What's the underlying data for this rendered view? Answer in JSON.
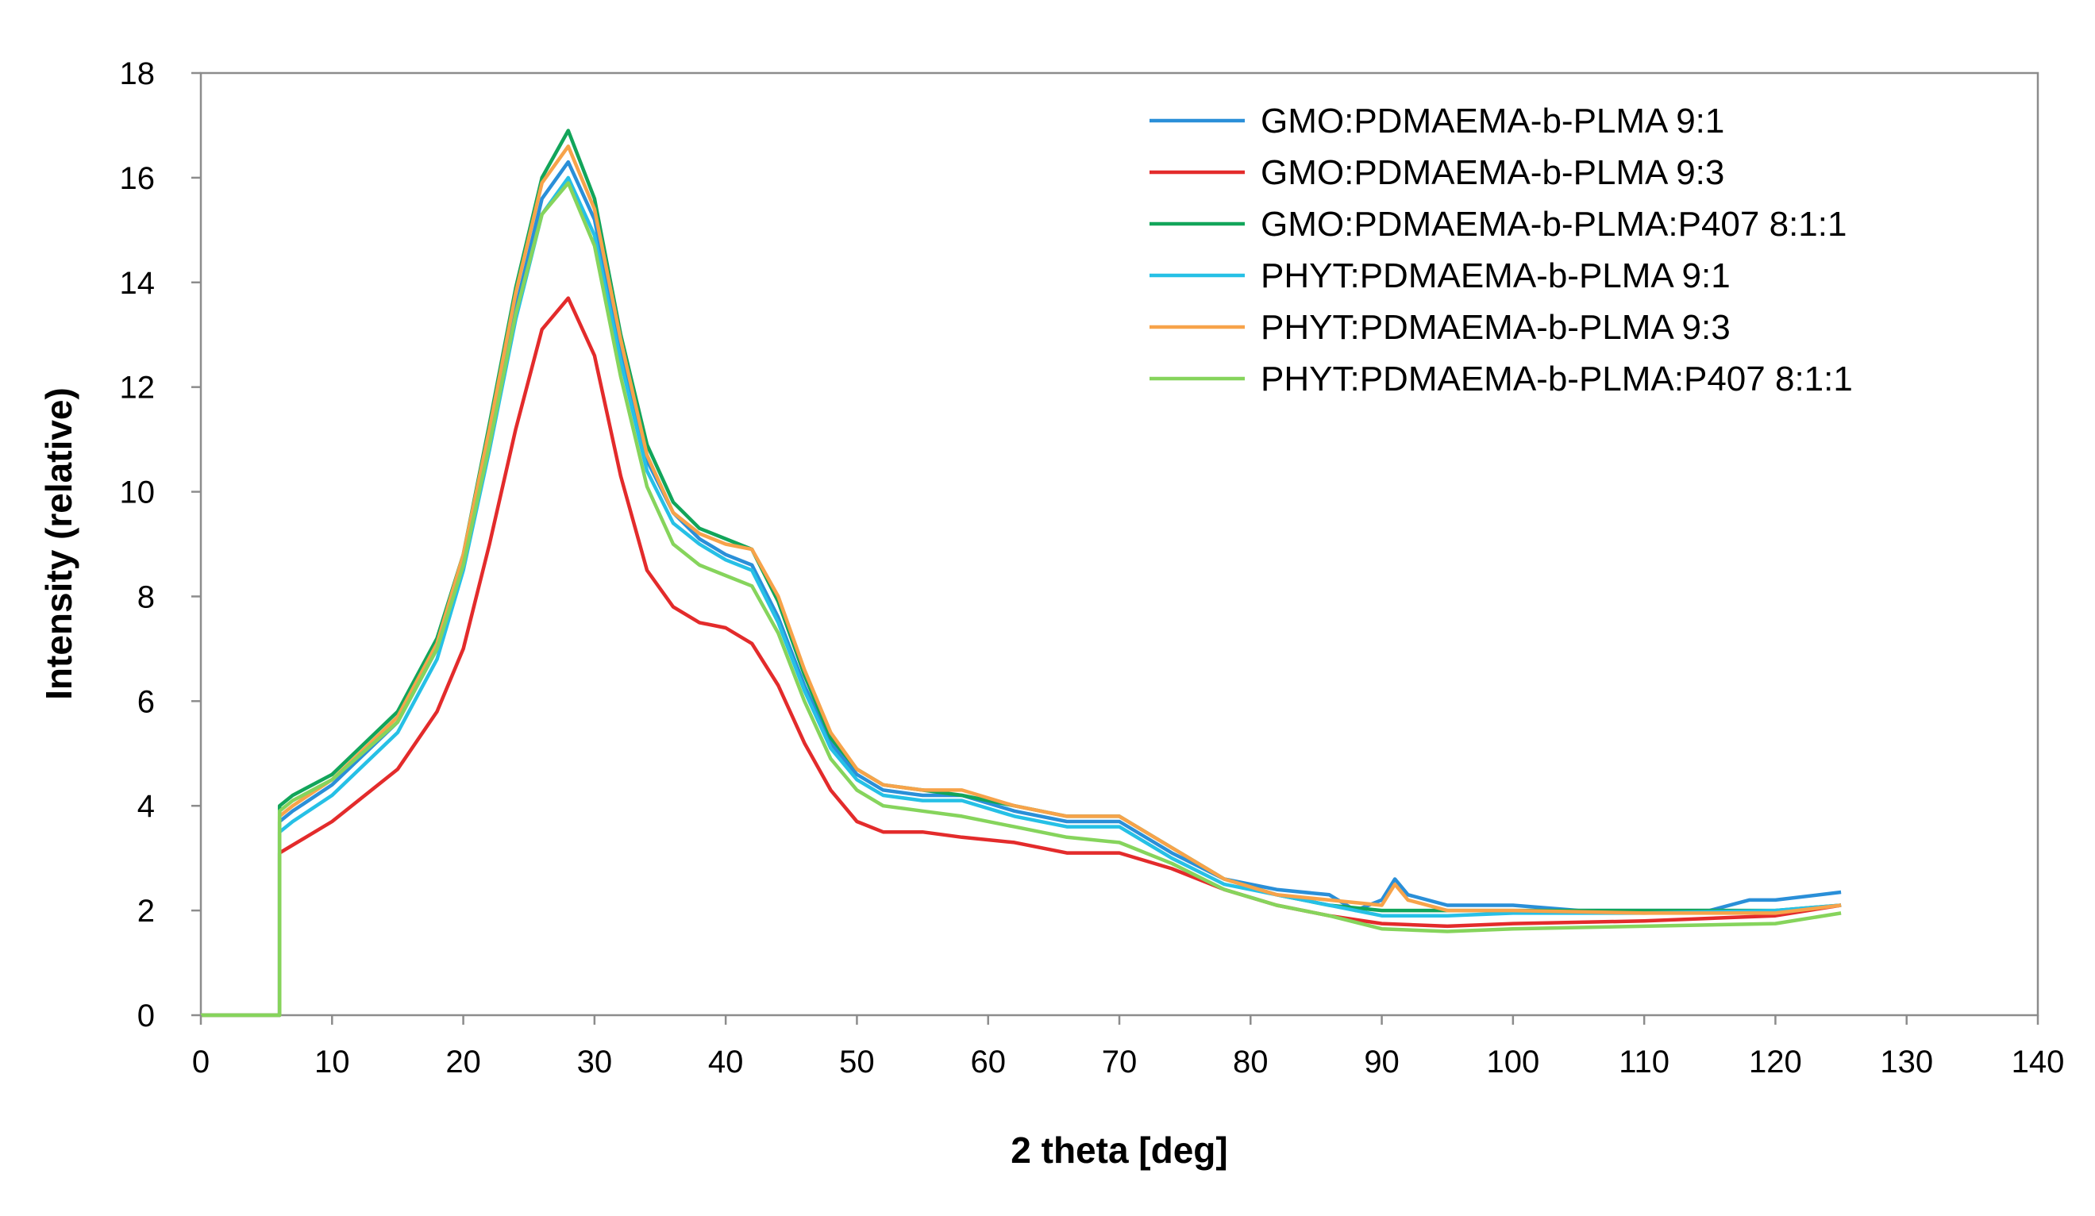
{
  "chart_data": {
    "type": "line",
    "title": "",
    "xlabel": "2 theta [deg]",
    "ylabel": "Intensity (relative)",
    "xlim": [
      0,
      140
    ],
    "ylim": [
      0,
      18
    ],
    "xticks": [
      "0",
      "10",
      "20",
      "30",
      "40",
      "50",
      "60",
      "70",
      "80",
      "90",
      "100",
      "110",
      "120",
      "130",
      "140"
    ],
    "yticks": [
      "0",
      "2",
      "4",
      "6",
      "8",
      "10",
      "12",
      "14",
      "16",
      "18"
    ],
    "grid": false,
    "legend_position": "top-right",
    "series": [
      {
        "name": "GMO:PDMAEMA-b-PLMA 9:1",
        "color": "#2a8fd8",
        "x": [
          0,
          6,
          6,
          7,
          10,
          15,
          18,
          20,
          22,
          24,
          26,
          28,
          30,
          32,
          34,
          36,
          38,
          40,
          42,
          44,
          46,
          48,
          50,
          52,
          55,
          58,
          62,
          66,
          70,
          74,
          78,
          82,
          86,
          88,
          90,
          91,
          92,
          95,
          100,
          105,
          110,
          115,
          118,
          120,
          125
        ],
        "y": [
          0,
          0,
          3.7,
          3.9,
          4.4,
          5.6,
          7.0,
          8.7,
          11.0,
          13.5,
          15.6,
          16.3,
          15.2,
          12.7,
          10.6,
          9.6,
          9.1,
          8.8,
          8.6,
          7.6,
          6.3,
          5.2,
          4.6,
          4.3,
          4.2,
          4.2,
          3.9,
          3.7,
          3.7,
          3.1,
          2.6,
          2.4,
          2.3,
          2.0,
          2.2,
          2.6,
          2.3,
          2.1,
          2.1,
          2.0,
          2.0,
          2.0,
          2.2,
          2.2,
          2.35
        ]
      },
      {
        "name": "GMO:PDMAEMA-b-PLMA 9:3",
        "color": "#e32b2b",
        "x": [
          0,
          6,
          6,
          7,
          10,
          15,
          18,
          20,
          22,
          24,
          26,
          28,
          30,
          32,
          34,
          36,
          38,
          40,
          42,
          44,
          46,
          48,
          50,
          52,
          55,
          58,
          62,
          66,
          70,
          74,
          78,
          82,
          86,
          90,
          95,
          100,
          110,
          120,
          125
        ],
        "y": [
          0,
          0,
          3.1,
          3.25,
          3.7,
          4.7,
          5.8,
          7.0,
          9.0,
          11.2,
          13.1,
          13.7,
          12.6,
          10.3,
          8.5,
          7.8,
          7.5,
          7.4,
          7.1,
          6.3,
          5.2,
          4.3,
          3.7,
          3.5,
          3.5,
          3.4,
          3.3,
          3.1,
          3.1,
          2.8,
          2.4,
          2.1,
          1.9,
          1.75,
          1.7,
          1.75,
          1.8,
          1.9,
          2.1
        ]
      },
      {
        "name": "GMO:PDMAEMA-b-PLMA:P407 8:1:1",
        "color": "#12a55a",
        "x": [
          0,
          6,
          6,
          7,
          10,
          15,
          18,
          20,
          22,
          24,
          26,
          28,
          30,
          32,
          34,
          36,
          38,
          40,
          42,
          44,
          46,
          48,
          50,
          52,
          55,
          58,
          62,
          66,
          70,
          74,
          78,
          82,
          86,
          90,
          95,
          100,
          110,
          120,
          125
        ],
        "y": [
          0,
          0,
          4.0,
          4.2,
          4.6,
          5.8,
          7.2,
          8.8,
          11.3,
          13.9,
          16.0,
          16.9,
          15.6,
          13.0,
          10.9,
          9.8,
          9.3,
          9.1,
          8.9,
          7.9,
          6.5,
          5.3,
          4.7,
          4.4,
          4.3,
          4.2,
          4.0,
          3.8,
          3.8,
          3.2,
          2.6,
          2.3,
          2.1,
          2.0,
          2.0,
          2.0,
          2.0,
          2.0,
          2.1
        ]
      },
      {
        "name": "PHYT:PDMAEMA-b-PLMA 9:1",
        "color": "#26c0e6",
        "x": [
          0,
          6,
          6,
          7,
          10,
          15,
          18,
          20,
          22,
          24,
          26,
          28,
          30,
          32,
          34,
          36,
          38,
          40,
          42,
          44,
          46,
          48,
          50,
          52,
          55,
          58,
          62,
          66,
          70,
          74,
          78,
          82,
          86,
          90,
          95,
          100,
          110,
          120,
          125
        ],
        "y": [
          0,
          0,
          3.5,
          3.7,
          4.2,
          5.4,
          6.8,
          8.5,
          10.8,
          13.3,
          15.3,
          16.0,
          14.9,
          12.5,
          10.4,
          9.4,
          9.0,
          8.7,
          8.5,
          7.5,
          6.2,
          5.1,
          4.5,
          4.2,
          4.1,
          4.1,
          3.8,
          3.6,
          3.6,
          3.0,
          2.5,
          2.3,
          2.1,
          1.9,
          1.9,
          1.95,
          1.95,
          2.0,
          2.1
        ]
      },
      {
        "name": "PHYT:PDMAEMA-b-PLMA 9:3",
        "color": "#f7a34a",
        "x": [
          0,
          6,
          6,
          7,
          10,
          15,
          18,
          20,
          22,
          24,
          26,
          28,
          30,
          32,
          34,
          36,
          38,
          40,
          42,
          44,
          46,
          48,
          50,
          52,
          55,
          58,
          62,
          66,
          70,
          74,
          78,
          82,
          86,
          90,
          91,
          92,
          95,
          100,
          110,
          120,
          125
        ],
        "y": [
          0,
          0,
          3.8,
          4.0,
          4.5,
          5.7,
          7.1,
          8.8,
          11.2,
          13.8,
          15.9,
          16.6,
          15.4,
          12.9,
          10.7,
          9.6,
          9.2,
          9.0,
          8.9,
          8.0,
          6.6,
          5.4,
          4.7,
          4.4,
          4.3,
          4.3,
          4.0,
          3.8,
          3.8,
          3.2,
          2.6,
          2.3,
          2.2,
          2.1,
          2.5,
          2.2,
          2.0,
          2.0,
          1.95,
          1.95,
          2.1
        ]
      },
      {
        "name": "PHYT:PDMAEMA-b-PLMA:P407 8:1:1",
        "color": "#86d45c",
        "x": [
          0,
          6,
          6,
          7,
          10,
          15,
          18,
          20,
          22,
          24,
          26,
          28,
          30,
          32,
          34,
          36,
          38,
          40,
          42,
          44,
          46,
          48,
          50,
          52,
          55,
          58,
          62,
          66,
          70,
          74,
          78,
          82,
          86,
          90,
          95,
          100,
          110,
          120,
          125
        ],
        "y": [
          0,
          0,
          3.9,
          4.1,
          4.5,
          5.6,
          7.0,
          8.6,
          10.9,
          13.4,
          15.3,
          15.9,
          14.7,
          12.2,
          10.1,
          9.0,
          8.6,
          8.4,
          8.2,
          7.3,
          6.0,
          4.9,
          4.3,
          4.0,
          3.9,
          3.8,
          3.6,
          3.4,
          3.3,
          2.9,
          2.4,
          2.1,
          1.9,
          1.65,
          1.6,
          1.65,
          1.7,
          1.75,
          1.95
        ]
      }
    ]
  }
}
